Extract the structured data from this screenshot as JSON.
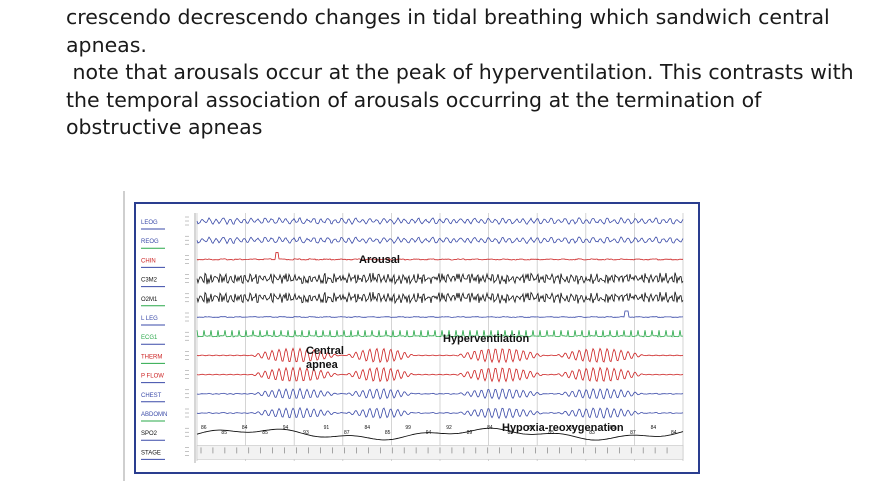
{
  "slide": {
    "paragraph_1": "crescendo decrescendo changes in tidal breathing which sandwich central apneas.",
    "paragraph_2": " note that arousals occur at the peak of hyperventilation. This contrasts with the temporal association of arousals occurring at the termination of obstructive apneas"
  },
  "figure": {
    "channels": [
      {
        "label": "LEOG",
        "color": "#3a4aa8"
      },
      {
        "label": "REOG",
        "color": "#3a4aa8"
      },
      {
        "label": "CHIN",
        "color": "#cc2222"
      },
      {
        "label": "C3M2",
        "color": "#111111"
      },
      {
        "label": "O2M1",
        "color": "#111111"
      },
      {
        "label": "L LEG",
        "color": "#3a4aa8"
      },
      {
        "label": "ECG1",
        "color": "#2aa84a"
      },
      {
        "label": "THERM",
        "color": "#cc2222"
      },
      {
        "label": "P FLOW",
        "color": "#cc2222"
      },
      {
        "label": "CHEST",
        "color": "#3a4aa8"
      },
      {
        "label": "ABDOMN",
        "color": "#3a4aa8"
      },
      {
        "label": "SPO2",
        "color": "#111111"
      },
      {
        "label": "STAGE",
        "color": "#111111"
      }
    ],
    "annotations": {
      "arousal": "Arousal",
      "hyperventilation": "Hyperventilation",
      "central_apnea_line1": "Central",
      "central_apnea_line2": "apnea",
      "hypoxia": "Hypoxia-reoxygenation"
    },
    "spo2_values": [
      "86",
      "85",
      "84",
      "85",
      "94",
      "93",
      "91",
      "87",
      "84",
      "85",
      "99",
      "94",
      "92",
      "89",
      "84",
      "83",
      "83",
      "85",
      "85",
      "83",
      "85",
      "87",
      "84",
      "84"
    ],
    "colors": {
      "frame": "#2a3d8f",
      "grid": "#c9c9c9",
      "sleep_stage_bg": "#f2f2f2"
    }
  }
}
